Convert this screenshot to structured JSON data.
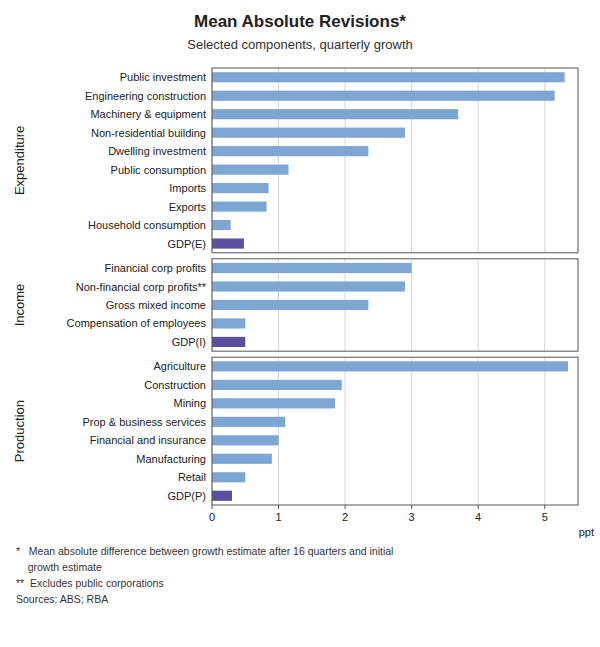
{
  "title": "Mean Absolute Revisions*",
  "subtitle": "Selected components, quarterly growth",
  "annotations": [
    "*   Mean absolute difference between growth estimate after 16 quarters and initial",
    "    growth estimate",
    "**  Excludes public corporations",
    "Sources: ABS; RBA"
  ],
  "chart_data": [
    {
      "type": "bar",
      "orientation": "horizontal",
      "ylabel": "Expenditure",
      "categories": [
        "Public investment",
        "Engineering construction",
        "Machinery & equipment",
        "Non-residential building",
        "Dwelling investment",
        "Public consumption",
        "Imports",
        "Exports",
        "Household consumption",
        "GDP(E)"
      ],
      "values": [
        5.3,
        5.15,
        3.7,
        2.9,
        2.35,
        1.15,
        0.85,
        0.82,
        0.28,
        0.48
      ],
      "colors": [
        "#7EA6D4",
        "#7EA6D4",
        "#7EA6D4",
        "#7EA6D4",
        "#7EA6D4",
        "#7EA6D4",
        "#7EA6D4",
        "#7EA6D4",
        "#7EA6D4",
        "#5B4F9E"
      ],
      "xlim": [
        0,
        5.5
      ],
      "xticks": [
        0,
        1,
        2,
        3,
        4,
        5
      ],
      "grid": true,
      "tick_labels": "y"
    },
    {
      "type": "bar",
      "orientation": "horizontal",
      "ylabel": "Income",
      "categories": [
        "Financial corp profits",
        "Non-financial corp profits**",
        "Gross mixed income",
        "Compensation of employees",
        "GDP(I)"
      ],
      "values": [
        3.0,
        2.9,
        2.35,
        0.5,
        0.5
      ],
      "colors": [
        "#7EA6D4",
        "#7EA6D4",
        "#7EA6D4",
        "#7EA6D4",
        "#5B4F9E"
      ],
      "xlim": [
        0,
        5.5
      ],
      "xticks": [
        0,
        1,
        2,
        3,
        4,
        5
      ],
      "grid": true,
      "tick_labels": "y"
    },
    {
      "type": "bar",
      "orientation": "horizontal",
      "ylabel": "Production",
      "xlabel": "ppt",
      "categories": [
        "Agriculture",
        "Construction",
        "Mining",
        "Prop & business services",
        "Financial and insurance",
        "Manufacturing",
        "Retail",
        "GDP(P)"
      ],
      "values": [
        5.35,
        1.95,
        1.85,
        1.1,
        1.0,
        0.9,
        0.5,
        0.3
      ],
      "colors": [
        "#7EA6D4",
        "#7EA6D4",
        "#7EA6D4",
        "#7EA6D4",
        "#7EA6D4",
        "#7EA6D4",
        "#7EA6D4",
        "#5B4F9E"
      ],
      "xlim": [
        0,
        5.5
      ],
      "xticks": [
        0,
        1,
        2,
        3,
        4,
        5
      ],
      "grid": true
    }
  ]
}
